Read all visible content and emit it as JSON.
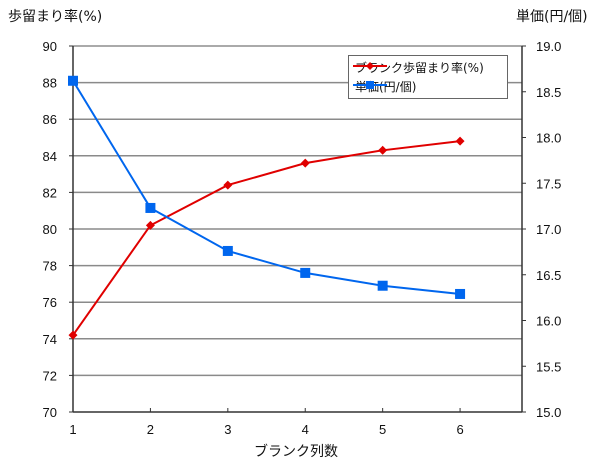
{
  "chart_data": {
    "type": "line",
    "title": "",
    "xlabel": "ブランク列数",
    "ylabel": "歩留まり率(%)",
    "y2label": "単価(円/個)",
    "x": [
      1,
      2,
      3,
      4,
      5,
      6
    ],
    "x_ticks": [
      "1",
      "2",
      "3",
      "4",
      "5",
      "6"
    ],
    "ylim": [
      70,
      90
    ],
    "y_ticks": [
      "70",
      "72",
      "74",
      "76",
      "78",
      "80",
      "82",
      "84",
      "86",
      "88",
      "90"
    ],
    "y2lim": [
      15.0,
      19.0
    ],
    "y2_ticks": [
      "15.0",
      "15.5",
      "16.0",
      "16.5",
      "17.0",
      "17.5",
      "18.0",
      "18.5",
      "19.0"
    ],
    "grid": true,
    "legend_position": "upper right (inside plot)",
    "series": [
      {
        "name": "ブランク歩留まり率(%)",
        "axis": "left",
        "color": "#e00000",
        "marker": "diamond",
        "values": [
          74.2,
          80.2,
          82.4,
          83.6,
          84.3,
          84.8
        ]
      },
      {
        "name": "単価(円/個)",
        "axis": "right",
        "color": "#0066ee",
        "marker": "square",
        "values": [
          18.62,
          17.23,
          16.76,
          16.52,
          16.38,
          16.29
        ]
      }
    ]
  },
  "labels": {
    "left_axis_title": "歩留まり率(%)",
    "right_axis_title": "単価(円/個)",
    "x_axis_title": "ブランク列数",
    "legend_1": "ブランク歩留まり率(%)",
    "legend_2": "単価(円/個)"
  }
}
